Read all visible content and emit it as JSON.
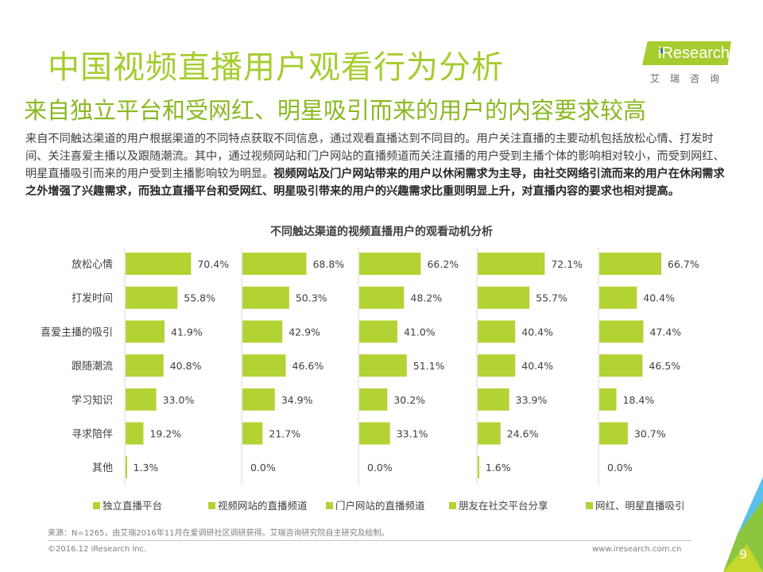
{
  "header": {
    "title": "中国视频直播用户观看行为分析",
    "subtitle": "来自独立平台和受网红、明星吸引而来的用户的内容要求较高"
  },
  "logo": {
    "brand": "iResearch",
    "chinese": "艾瑞咨询",
    "colors": {
      "badge": "#a6cc2e",
      "dot": "#2a66b8"
    }
  },
  "description": {
    "normal": "来自不同触达渠道的用户根据渠道的不同特点获取不同信息，通过观看直播达到不同目的。用户关注直播的主要动机包括放松心情、打发时间、关注喜爱主播以及跟随潮流。其中，通过视频网站和门户网站的直播频道而关注直播的用户受到主播个体的影响相对较小，而受到网红、明星直播吸引而来的用户受到主播影响较为明显。",
    "bold": "视频网站及门户网站带来的用户以休闲需求为主导，由社交网络引流而来的用户在休闲需求之外增强了兴趣需求，而独立直播平台和受网红、明星吸引带来的用户的兴趣需求比重则明显上升，对直播内容的要求也相对提高。"
  },
  "chart_data": {
    "type": "bar",
    "orientation": "horizontal",
    "layout": "small-multiples",
    "title": "不同触达渠道的视频直播用户的观看动机分析",
    "xlabel": "",
    "ylabel": "",
    "unit": "%",
    "xlim": [
      0,
      100
    ],
    "grid": false,
    "legend_position": "bottom",
    "bar_color": "#b3d335",
    "categories": [
      "放松心情",
      "打发时间",
      "喜爱主播的吸引",
      "跟随潮流",
      "学习知识",
      "寻求陪伴",
      "其他"
    ],
    "series": [
      {
        "name": "独立直播平台",
        "values": [
          70.4,
          55.8,
          41.9,
          40.8,
          33.0,
          19.2,
          1.3
        ],
        "labels": [
          "70.4%",
          "55.8%",
          "41.9%",
          "40.8%",
          "33.0%",
          "19.2%",
          "1.3%"
        ]
      },
      {
        "name": "视频网站的直播频道",
        "values": [
          68.8,
          50.3,
          42.9,
          46.6,
          34.9,
          21.7,
          0.0
        ],
        "labels": [
          "68.8%",
          "50.3%",
          "42.9%",
          "46.6%",
          "34.9%",
          "21.7%",
          "0.0%"
        ]
      },
      {
        "name": "门户网站的直播频道",
        "values": [
          66.2,
          48.2,
          41.0,
          51.1,
          30.2,
          33.1,
          0.0
        ],
        "labels": [
          "66.2%",
          "48.2%",
          "41.0%",
          "51.1%",
          "30.2%",
          "33.1%",
          "0.0%"
        ]
      },
      {
        "name": "朋友在社交平台分享",
        "values": [
          72.1,
          55.7,
          40.4,
          40.4,
          33.9,
          24.6,
          1.6
        ],
        "labels": [
          "72.1%",
          "55.7%",
          "40.4%",
          "40.4%",
          "33.9%",
          "24.6%",
          "1.6%"
        ]
      },
      {
        "name": "网红、明星直播吸引",
        "values": [
          66.7,
          40.4,
          47.4,
          46.5,
          18.4,
          30.7,
          0.0
        ],
        "labels": [
          "66.7%",
          "40.4%",
          "47.4%",
          "46.5%",
          "18.4%",
          "30.7%",
          "0.0%"
        ]
      }
    ]
  },
  "footer": {
    "source": "来源：N=1265，由艾瑞2016年11月在爱调研社区调研获得。艾瑞咨询研究院自主研究及绘制。",
    "copyright": "©2016.12 iResearch Inc.",
    "website": "www.iresearch.com.cn",
    "page_number": "9"
  }
}
